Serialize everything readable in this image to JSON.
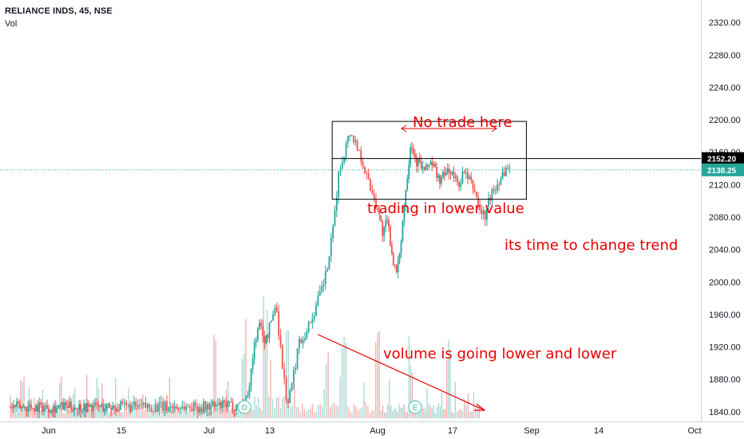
{
  "header": {
    "symbol": "RELIANCE INDS, 45, NSE",
    "volume_label": "Vol"
  },
  "chart_data": {
    "type": "candlestick",
    "ylim": [
      1830,
      2330
    ],
    "y_ticks": [
      "2320.00",
      "2280.00",
      "2240.00",
      "2200.00",
      "2160.00",
      "2120.00",
      "2080.00",
      "2040.00",
      "2000.00",
      "1960.00",
      "1920.00",
      "1880.00",
      "1840.00"
    ],
    "x_tick_labels": [
      "Jun",
      "15",
      "Jul",
      "13",
      "Aug",
      "17",
      "Sep",
      "14",
      "Oct"
    ],
    "x_tick_label_positions_days": [
      0,
      15,
      30,
      42,
      61,
      77,
      92,
      106,
      122
    ],
    "date_range_days": [
      -8,
      124
    ],
    "price_markers": [
      {
        "label": "2152.20",
        "value": 2152.2,
        "color": "#000000"
      },
      {
        "label": "2138.25",
        "value": 2138.25,
        "color": "#26a69a"
      }
    ],
    "price_path": [
      [
        -8,
        1846
      ],
      [
        28,
        1846
      ],
      [
        37,
        1848
      ],
      [
        38,
        1880
      ],
      [
        39,
        1930
      ],
      [
        40,
        1948
      ],
      [
        41,
        1925
      ],
      [
        42,
        1948
      ],
      [
        43,
        1975
      ],
      [
        44,
        1905
      ],
      [
        45,
        1848
      ],
      [
        46,
        1880
      ],
      [
        47,
        1925
      ],
      [
        48,
        1935
      ],
      [
        49,
        1950
      ],
      [
        50,
        1968
      ],
      [
        51,
        1990
      ],
      [
        52,
        2015
      ],
      [
        53,
        2060
      ],
      [
        54,
        2130
      ],
      [
        55,
        2160
      ],
      [
        56,
        2185
      ],
      [
        57,
        2172
      ],
      [
        58,
        2155
      ],
      [
        59,
        2130
      ],
      [
        60,
        2110
      ],
      [
        61,
        2090
      ],
      [
        62,
        2060
      ],
      [
        63,
        2075
      ],
      [
        64,
        2035
      ],
      [
        65,
        2005
      ],
      [
        66,
        2060
      ],
      [
        67,
        2120
      ],
      [
        68,
        2175
      ],
      [
        69,
        2150
      ],
      [
        70,
        2145
      ],
      [
        71,
        2135
      ],
      [
        72,
        2150
      ],
      [
        73,
        2140
      ],
      [
        74,
        2125
      ],
      [
        75,
        2130
      ],
      [
        76,
        2140
      ],
      [
        77,
        2130
      ],
      [
        78,
        2120
      ],
      [
        79,
        2135
      ],
      [
        80,
        2125
      ],
      [
        81,
        2115
      ],
      [
        82,
        2090
      ],
      [
        83,
        2080
      ],
      [
        84,
        2105
      ],
      [
        85,
        2115
      ],
      [
        86,
        2130
      ],
      [
        87,
        2140
      ],
      [
        88,
        2138.25
      ]
    ],
    "volume": {
      "trend": "decreasing",
      "peak_days": [
        31,
        37,
        41,
        45,
        52,
        55,
        61,
        68,
        76,
        83
      ]
    },
    "events": [
      {
        "label": "D",
        "day": 37
      },
      {
        "label": "E",
        "day": 69
      }
    ],
    "range_box": {
      "x": [
        53,
        91
      ],
      "y": [
        2102,
        2198
      ]
    },
    "annotations": [
      "No trade here",
      "trading in lower value",
      "its time to change trend",
      "volume is going lower and lower"
    ]
  },
  "colors": {
    "up": "#26a69a",
    "down": "#ef5350",
    "volume_up": "#a5d6d1",
    "volume_down": "#f5aaa8",
    "annotation": "#e60000",
    "event_badge": "#7ecfc2"
  }
}
